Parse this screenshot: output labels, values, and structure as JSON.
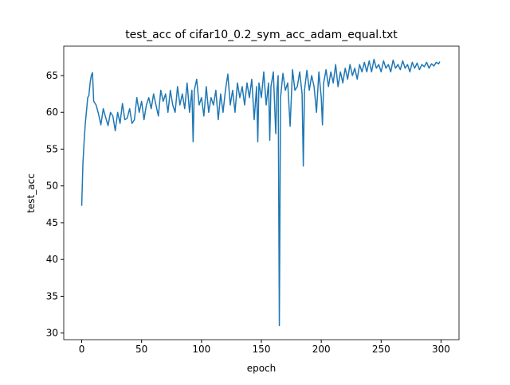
{
  "chart_data": {
    "type": "line",
    "title": "test_acc of cifar10_0.2_sym_acc_adam_equal.txt",
    "xlabel": "epoch",
    "ylabel": "test_acc",
    "xlim": [
      -15,
      315
    ],
    "ylim": [
      29.1,
      69.0
    ],
    "xticks": [
      0,
      50,
      100,
      150,
      200,
      250,
      300
    ],
    "yticks": [
      30,
      35,
      40,
      45,
      50,
      55,
      60,
      65
    ],
    "x": [
      0,
      1,
      2,
      3,
      4,
      5,
      6,
      7,
      8,
      9,
      10,
      12,
      14,
      16,
      18,
      20,
      22,
      24,
      26,
      28,
      30,
      32,
      34,
      36,
      38,
      40,
      42,
      44,
      46,
      48,
      50,
      52,
      54,
      56,
      58,
      60,
      62,
      64,
      66,
      68,
      70,
      72,
      74,
      76,
      78,
      80,
      82,
      84,
      86,
      88,
      90,
      92,
      93,
      94,
      96,
      98,
      100,
      102,
      104,
      106,
      108,
      110,
      112,
      114,
      116,
      118,
      120,
      122,
      124,
      126,
      128,
      130,
      132,
      134,
      136,
      138,
      140,
      142,
      144,
      146,
      147,
      148,
      150,
      152,
      154,
      156,
      157,
      158,
      160,
      162,
      163,
      164,
      165,
      166,
      168,
      170,
      172,
      174,
      176,
      178,
      180,
      182,
      184,
      185,
      186,
      188,
      190,
      192,
      194,
      196,
      198,
      200,
      201,
      202,
      204,
      206,
      208,
      210,
      212,
      214,
      216,
      218,
      220,
      222,
      224,
      226,
      228,
      230,
      232,
      234,
      236,
      238,
      240,
      242,
      244,
      246,
      248,
      250,
      252,
      254,
      256,
      258,
      260,
      262,
      264,
      266,
      268,
      270,
      272,
      274,
      276,
      278,
      280,
      282,
      284,
      286,
      288,
      290,
      292,
      294,
      296,
      298,
      299
    ],
    "series": [
      {
        "name": "test_acc",
        "color": "#1f77b4",
        "values": [
          47.3,
          53,
          56,
          58.5,
          60.2,
          62,
          62.3,
          64,
          65,
          65.4,
          61.5,
          61,
          59.8,
          58.3,
          60.5,
          59.3,
          58.2,
          60,
          59.5,
          57.5,
          60,
          58.5,
          61.2,
          59,
          59.2,
          60.5,
          58.5,
          59,
          62,
          60,
          61.5,
          59,
          61,
          62,
          60.5,
          62.5,
          61,
          59.5,
          63,
          61.5,
          62.5,
          60,
          63,
          61,
          60,
          63.5,
          61,
          62.5,
          60.5,
          64,
          60,
          63,
          56,
          63,
          64.5,
          61,
          62,
          59.5,
          63.5,
          60,
          62,
          61,
          63,
          59,
          62.5,
          60,
          63,
          65.2,
          61,
          63,
          60,
          64,
          62,
          63.5,
          61,
          64,
          62,
          64.5,
          59,
          63.5,
          56,
          64,
          62,
          65.5,
          61,
          64,
          56.2,
          63.5,
          65.5,
          57.1,
          63,
          65,
          31,
          62,
          65.3,
          63,
          64,
          58.1,
          65.8,
          63,
          63.5,
          65.5,
          62.5,
          52.7,
          63,
          65.7,
          63,
          65,
          63.5,
          60,
          65.5,
          62,
          58.3,
          64,
          65.8,
          63.5,
          65.5,
          64,
          66.5,
          63.5,
          65.5,
          64,
          66,
          64.5,
          66.5,
          65,
          66,
          64.5,
          66.5,
          65.5,
          66.8,
          65.5,
          67,
          65.5,
          67.2,
          66,
          66.5,
          65.5,
          67,
          66,
          66.5,
          65.5,
          67.1,
          66,
          66.5,
          65.8,
          67,
          66,
          66.5,
          65.5,
          66.8,
          66,
          66.7,
          65.8,
          66.5,
          66.2,
          66.8,
          66,
          66.6,
          66.3,
          66.8,
          66.6,
          66.9
        ]
      }
    ]
  }
}
